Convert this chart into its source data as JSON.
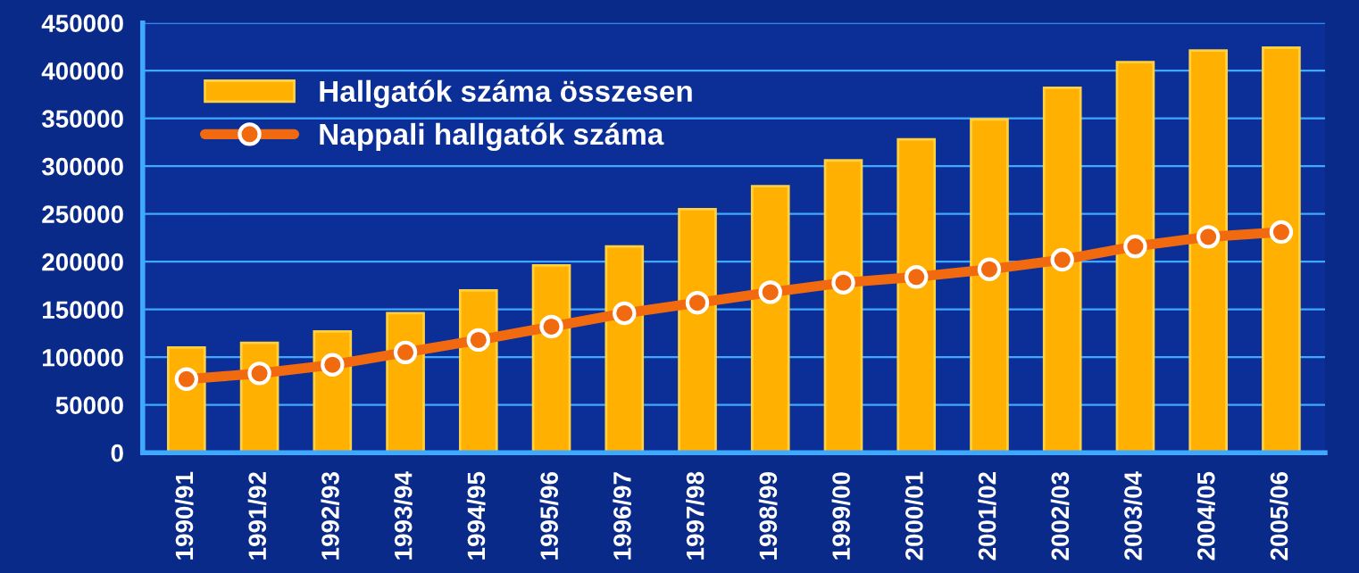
{
  "chart_data": {
    "type": "bar",
    "categories": [
      "1990/91",
      "1991/92",
      "1992/93",
      "1993/94",
      "1994/95",
      "1995/96",
      "1996/97",
      "1997/98",
      "1998/99",
      "1999/00",
      "2000/01",
      "2001/02",
      "2002/03",
      "2003/04",
      "2004/05",
      "2005/06"
    ],
    "series": [
      {
        "name": "Hallgatók száma összesen",
        "color": "#ffb000",
        "values": [
          110000,
          115000,
          127000,
          146000,
          170000,
          196000,
          216000,
          255000,
          279000,
          306000,
          328000,
          349000,
          382000,
          409000,
          421000,
          424000
        ]
      },
      {
        "name": "Nappali hallgatók száma",
        "type": "line",
        "color": "#f26a10",
        "marker": "circle",
        "values": [
          77000,
          83000,
          92000,
          105000,
          118000,
          132000,
          146000,
          157000,
          168000,
          178000,
          184000,
          192000,
          202000,
          216000,
          226000,
          231000
        ]
      }
    ],
    "ylim": [
      0,
      450000
    ],
    "yticks": [
      0,
      50000,
      100000,
      150000,
      200000,
      250000,
      300000,
      350000,
      400000,
      450000
    ],
    "grid": "y",
    "legend": "top left"
  }
}
